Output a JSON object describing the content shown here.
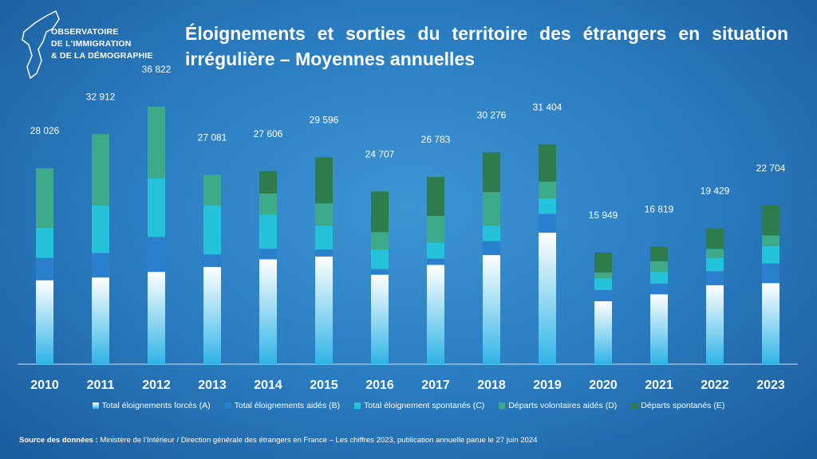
{
  "logo": {
    "lines": [
      "OBSERVATOIRE",
      "DE L'IMMIGRATION",
      "& DE LA DÉMOGRAPHIE"
    ]
  },
  "chart_data": {
    "type": "stacked-bar",
    "title": "Éloignements et sorties du territoire des étrangers en situation irrégulière – Moyennes annuelles",
    "categories": [
      "2010",
      "2011",
      "2012",
      "2013",
      "2014",
      "2015",
      "2016",
      "2017",
      "2018",
      "2019",
      "2020",
      "2021",
      "2022",
      "2023"
    ],
    "series": [
      {
        "name": "Total éloignements forcés (A)",
        "color": "#dff1fb",
        "values": [
          12000,
          12400,
          13200,
          13900,
          15000,
          15400,
          12800,
          14200,
          15600,
          18800,
          9000,
          10000,
          11300,
          11600
        ]
      },
      {
        "name": "Total éloignements aidés (B)",
        "color": "#2a80cc",
        "values": [
          3200,
          3500,
          5000,
          1800,
          1500,
          1000,
          800,
          900,
          2000,
          2700,
          1600,
          1500,
          2000,
          2800
        ]
      },
      {
        "name": "Total éloignement spontanés (C)",
        "color": "#24c3d9",
        "values": [
          4300,
          6800,
          8400,
          7000,
          4900,
          3400,
          2800,
          2300,
          2200,
          2200,
          1700,
          1700,
          1900,
          2500
        ]
      },
      {
        "name": "Départs volontaires aidés (D)",
        "color": "#3dab8a",
        "values": [
          8526,
          10212,
          10222,
          4381,
          3000,
          3200,
          2500,
          3800,
          4800,
          2400,
          800,
          1500,
          1300,
          1500
        ]
      },
      {
        "name": "Départs spontanés (E)",
        "color": "#2e7c4b",
        "values": [
          0,
          0,
          0,
          0,
          3206,
          6596,
          5807,
          5583,
          5676,
          5304,
          2849,
          2119,
          2929,
          4304
        ]
      }
    ],
    "totals": [
      28026,
      32912,
      36822,
      27081,
      27606,
      29596,
      24707,
      26783,
      30276,
      31404,
      15949,
      16819,
      19429,
      22704
    ],
    "total_labels": [
      "28 026",
      "32 912",
      "36 822",
      "27 081",
      "27 606",
      "29 596",
      "24 707",
      "26 783",
      "30 276",
      "31 404",
      "15 949",
      "16 819",
      "19 429",
      "22 704"
    ],
    "ylim": [
      0,
      40000
    ],
    "source_label": "Source des données :",
    "source": "Ministère de l’Intérieur / Direction générale des étrangers en France – Les chiffres 2023, publication annuelle parue le 27 juin 2024"
  }
}
